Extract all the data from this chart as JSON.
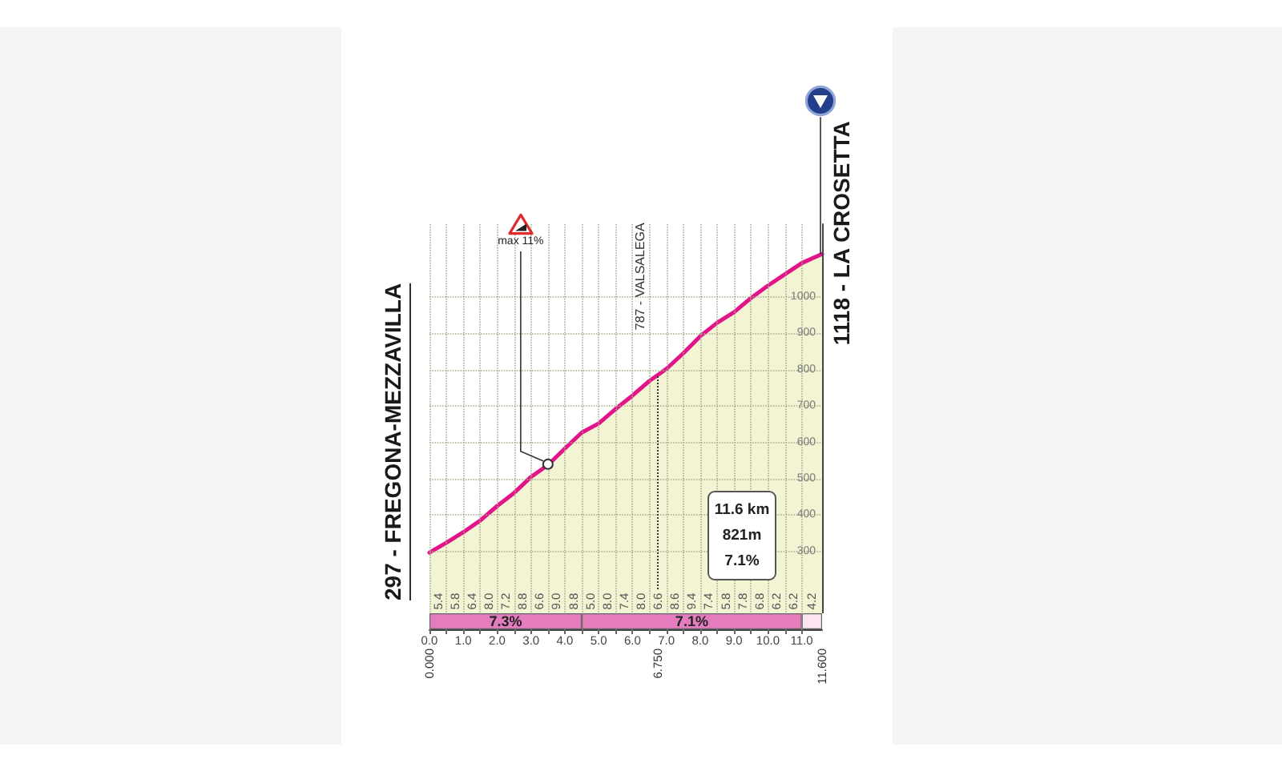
{
  "chart_data": [
    {
      "type": "area",
      "x": [
        0,
        0.5,
        1,
        1.5,
        2,
        2.5,
        3,
        3.5,
        4,
        4.5,
        5,
        5.5,
        6,
        6.5,
        7,
        7.5,
        8,
        8.5,
        9,
        9.5,
        10,
        10.5,
        11,
        11.6
      ],
      "values": [
        297,
        324,
        353,
        385,
        425,
        461,
        505,
        538,
        583,
        627,
        652,
        692,
        729,
        769,
        802,
        845,
        892,
        929,
        958,
        997,
        1031,
        1062,
        1093,
        1118
      ],
      "color": "#f2f4d4",
      "xlim": [
        0,
        11.6
      ],
      "xticks": [
        {
          "value": 0,
          "label": null
        },
        {
          "value": 0.5,
          "label": null
        },
        {
          "value": 1,
          "label": null
        },
        {
          "value": 1.5,
          "label": null
        },
        {
          "value": 2,
          "label": null
        },
        {
          "value": 2.5,
          "label": null
        },
        {
          "value": 3,
          "label": null
        },
        {
          "value": 3.5,
          "label": null
        },
        {
          "value": 4,
          "label": null
        },
        {
          "value": 4.5,
          "label": null
        },
        {
          "value": 5,
          "label": null
        },
        {
          "value": 5.5,
          "label": null
        },
        {
          "value": 6,
          "label": null
        },
        {
          "value": 6.5,
          "label": null
        },
        {
          "value": 7,
          "label": null
        },
        {
          "value": 7.5,
          "label": null
        },
        {
          "value": 8,
          "label": null
        },
        {
          "value": 8.5,
          "label": null
        },
        {
          "value": 9,
          "label": null
        },
        {
          "value": 9.5,
          "label": null
        },
        {
          "value": 10,
          "label": null
        },
        {
          "value": 10.5,
          "label": null
        },
        {
          "value": 11,
          "label": null
        }
      ],
      "ylim": [
        130,
        1200
      ],
      "yticks": [
        300,
        400,
        500,
        600,
        700,
        800,
        900,
        1000
      ],
      "grid": true,
      "tick_labels": "y",
      "ref_lines": [
        {
          "axis": "x",
          "value": 6.75,
          "label": "787 - VALSALEGA",
          "line_style": "dotted",
          "color": "#333333"
        }
      ],
      "annotations": [
        {
          "text": "297 - FREGONA-MEZZAVILLA",
          "x": 0,
          "y": 297
        },
        {
          "text": "1118 - LA CROSETTA",
          "x": 11.6,
          "y": 1118
        },
        {
          "text": "max 11%",
          "x": 3.5,
          "y": 540
        },
        "11.6 km",
        "821m",
        "7.1%",
        "5.4",
        "5.8",
        "6.4",
        "8.0",
        "7.2",
        "8.8",
        "6.6",
        "9.0",
        "8.8",
        "5.0",
        "8.0",
        "7.4",
        "8.0",
        "6.6",
        "8.6",
        "9.4",
        "7.4",
        "5.8",
        "7.8",
        "6.8",
        "6.2",
        "6.2",
        "4.2"
      ]
    },
    {
      "type": "bar",
      "orientation": "horizontal",
      "stacked": true,
      "categories": [
        null
      ],
      "series": [
        {
          "color": "#e47cbd",
          "values": [
            4.5
          ]
        },
        {
          "color": "#e47cbd",
          "values": [
            6.5
          ]
        },
        {
          "color": "#fce4f1",
          "values": [
            0.6
          ]
        }
      ],
      "annotations": [
        "7.3%",
        "7.1%"
      ],
      "xlim": [
        0,
        11.6
      ],
      "xticks": [
        {
          "value": 0,
          "label": "0.0"
        },
        {
          "value": 0.5,
          "label": null
        },
        {
          "value": 1,
          "label": "1.0"
        },
        {
          "value": 1.5,
          "label": null
        },
        {
          "value": 2,
          "label": "2.0"
        },
        {
          "value": 2.5,
          "label": null
        },
        {
          "value": 3,
          "label": "3.0"
        },
        {
          "value": 3.5,
          "label": null
        },
        {
          "value": 4,
          "label": "4.0"
        },
        {
          "value": 4.5,
          "label": null
        },
        {
          "value": 5,
          "label": "5.0"
        },
        {
          "value": 5.5,
          "label": null
        },
        {
          "value": 6,
          "label": "6.0"
        },
        {
          "value": 6.5,
          "label": null
        },
        {
          "value": 7,
          "label": "7.0"
        },
        {
          "value": 7.5,
          "label": null
        },
        {
          "value": 8,
          "label": "8.0"
        },
        {
          "value": 8.5,
          "label": null
        },
        {
          "value": 9,
          "label": "9.0"
        },
        {
          "value": 9.5,
          "label": null
        },
        {
          "value": 10,
          "label": "10.0"
        },
        {
          "value": 10.5,
          "label": null
        },
        {
          "value": 11,
          "label": "11.0"
        }
      ],
      "x2lim": [
        0,
        11.6
      ],
      "x2ticks": [
        {
          "value": 0,
          "label": "0.000"
        },
        {
          "value": 6.75,
          "label": "6.750"
        },
        {
          "value": 11.6,
          "label": "11.600"
        }
      ]
    }
  ]
}
